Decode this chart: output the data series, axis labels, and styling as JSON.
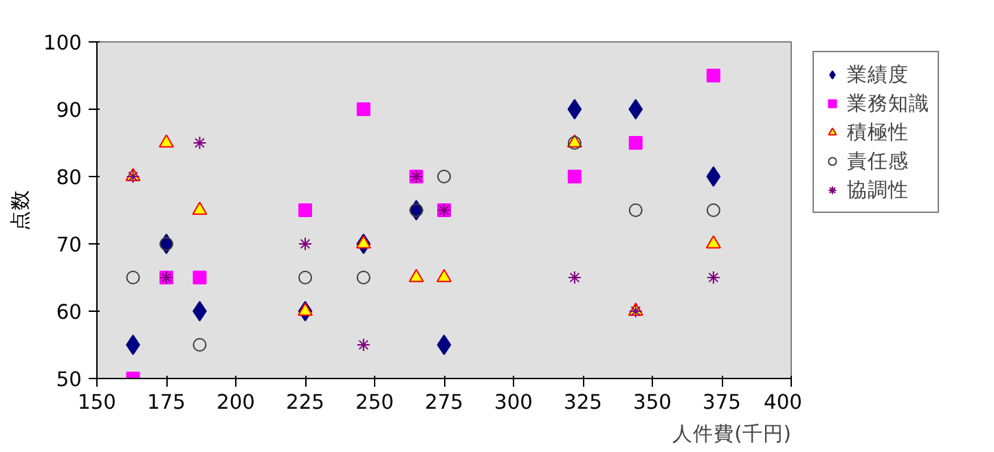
{
  "chart_data": {
    "type": "scatter",
    "xlabel": "人件費(千円)",
    "ylabel": "点数",
    "x": [
      163,
      175,
      187,
      225,
      246,
      265,
      275,
      322,
      344,
      372
    ],
    "xlim": [
      150,
      400
    ],
    "xticks": [
      150,
      175,
      200,
      225,
      250,
      275,
      300,
      325,
      350,
      375,
      400
    ],
    "ylim": [
      50,
      100
    ],
    "yticks": [
      50,
      60,
      70,
      80,
      90,
      100
    ],
    "grid": false,
    "legend": "right",
    "series": [
      {
        "name": "業績度",
        "color": "#000080",
        "marker": "diamond",
        "values": [
          55,
          70,
          60,
          60,
          70,
          75,
          55,
          90,
          90,
          80
        ]
      },
      {
        "name": "業務知識",
        "color": "#ff00ff",
        "marker": "square",
        "values": [
          50,
          65,
          65,
          75,
          90,
          80,
          75,
          80,
          85,
          95
        ]
      },
      {
        "name": "積極性",
        "color": "#ffff00",
        "marker": "triangle",
        "values": [
          80,
          85,
          75,
          60,
          70,
          65,
          65,
          85,
          60,
          70
        ]
      },
      {
        "name": "責任感",
        "color": "#404040",
        "marker": "circle",
        "values": [
          65,
          70,
          55,
          65,
          65,
          75,
          80,
          85,
          75,
          75
        ]
      },
      {
        "name": "協調性",
        "color": "#800080",
        "marker": "cross",
        "values": [
          80,
          65,
          85,
          70,
          55,
          80,
          75,
          65,
          60,
          65
        ]
      }
    ]
  }
}
